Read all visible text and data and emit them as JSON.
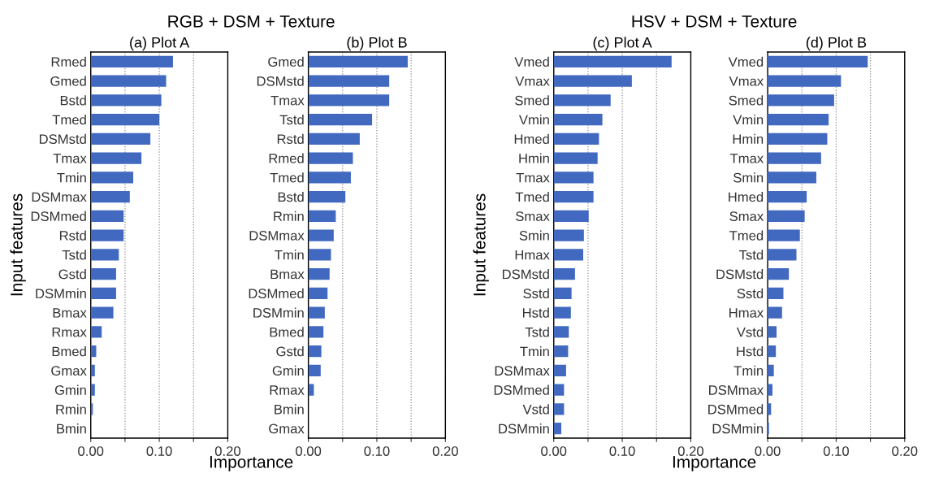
{
  "chart_data": [
    {
      "type": "bar",
      "orientation": "horizontal",
      "subtitle": "RGB + DSM + Texture",
      "title": "(a) Plot A",
      "xlabel": "Importance",
      "ylabel": "Input features",
      "color": "#4169c0",
      "grid": "x",
      "xlim": [
        0,
        0.2
      ],
      "xticks": [
        {
          "value": 0,
          "label": "0.00"
        },
        {
          "value": 0.05,
          "label": null
        },
        {
          "value": 0.1,
          "label": "0.10"
        },
        {
          "value": 0.15,
          "label": null
        },
        {
          "value": 0.2,
          "label": "0.20"
        }
      ],
      "categories": [
        "Rmed",
        "Gmed",
        "Bstd",
        "Tmed",
        "DSMstd",
        "Tmax",
        "Tmin",
        "DSMmax",
        "DSMmed",
        "Rstd",
        "Tstd",
        "Gstd",
        "DSMmin",
        "Bmax",
        "Rmax",
        "Bmed",
        "Gmax",
        "Gmin",
        "Rmin",
        "Bmin"
      ],
      "values": [
        0.12,
        0.11,
        0.103,
        0.1,
        0.087,
        0.074,
        0.062,
        0.057,
        0.048,
        0.048,
        0.041,
        0.037,
        0.037,
        0.033,
        0.016,
        0.008,
        0.006,
        0.006,
        0.003,
        0
      ]
    },
    {
      "type": "bar",
      "orientation": "horizontal",
      "title": "(b) Plot B",
      "color": "#4169c0",
      "grid": "x",
      "xlim": [
        0,
        0.2
      ],
      "xticks": [
        {
          "value": 0,
          "label": "0.00"
        },
        {
          "value": 0.05,
          "label": null
        },
        {
          "value": 0.1,
          "label": "0.10"
        },
        {
          "value": 0.15,
          "label": null
        },
        {
          "value": 0.2,
          "label": "0.20"
        }
      ],
      "categories": [
        "Gmed",
        "DSMstd",
        "Tmax",
        "Tstd",
        "Rstd",
        "Rmed",
        "Tmed",
        "Bstd",
        "Rmin",
        "DSMmax",
        "Tmin",
        "Bmax",
        "DSMmed",
        "DSMmin",
        "Bmed",
        "Gstd",
        "Gmin",
        "Rmax",
        "Bmin",
        "Gmax"
      ],
      "values": [
        0.145,
        0.118,
        0.118,
        0.093,
        0.075,
        0.065,
        0.062,
        0.054,
        0.04,
        0.037,
        0.033,
        0.031,
        0.028,
        0.024,
        0.022,
        0.019,
        0.018,
        0.008,
        0,
        0
      ]
    },
    {
      "type": "bar",
      "orientation": "horizontal",
      "subtitle": "HSV + DSM + Texture",
      "title": "(c) Plot A",
      "xlabel": "Importance",
      "ylabel": "Input features",
      "color": "#4169c0",
      "grid": "x",
      "xlim": [
        0,
        0.2
      ],
      "xticks": [
        {
          "value": 0,
          "label": "0.00"
        },
        {
          "value": 0.05,
          "label": null
        },
        {
          "value": 0.1,
          "label": "0.10"
        },
        {
          "value": 0.15,
          "label": null
        },
        {
          "value": 0.2,
          "label": "0.20"
        }
      ],
      "categories": [
        "Vmed",
        "Vmax",
        "Smed",
        "Vmin",
        "Hmed",
        "Hmin",
        "Tmax",
        "Tmed",
        "Smax",
        "Smin",
        "Hmax",
        "DSMstd",
        "Sstd",
        "Hstd",
        "Tstd",
        "Tmin",
        "DSMmax",
        "DSMmed",
        "Vstd",
        "DSMmin"
      ],
      "values": [
        0.172,
        0.114,
        0.083,
        0.071,
        0.066,
        0.064,
        0.058,
        0.058,
        0.051,
        0.044,
        0.043,
        0.031,
        0.026,
        0.025,
        0.022,
        0.021,
        0.018,
        0.015,
        0.015,
        0.011
      ]
    },
    {
      "type": "bar",
      "orientation": "horizontal",
      "title": "(d) Plot B",
      "color": "#4169c0",
      "grid": "x",
      "xlim": [
        0,
        0.2
      ],
      "xticks": [
        {
          "value": 0,
          "label": "0.00"
        },
        {
          "value": 0.05,
          "label": null
        },
        {
          "value": 0.1,
          "label": "0.10"
        },
        {
          "value": 0.15,
          "label": null
        },
        {
          "value": 0.2,
          "label": "0.20"
        }
      ],
      "categories": [
        "Vmed",
        "Vmax",
        "Smed",
        "Vmin",
        "Hmin",
        "Tmax",
        "Smin",
        "Hmed",
        "Smax",
        "Tmed",
        "Tstd",
        "DSMstd",
        "Sstd",
        "Hmax",
        "Vstd",
        "Hstd",
        "Tmin",
        "DSMmax",
        "DSMmed",
        "DSMmin"
      ],
      "values": [
        0.146,
        0.107,
        0.097,
        0.089,
        0.087,
        0.078,
        0.071,
        0.057,
        0.054,
        0.047,
        0.042,
        0.031,
        0.023,
        0.021,
        0.013,
        0.012,
        0.009,
        0.007,
        0.005,
        0.002
      ]
    }
  ]
}
